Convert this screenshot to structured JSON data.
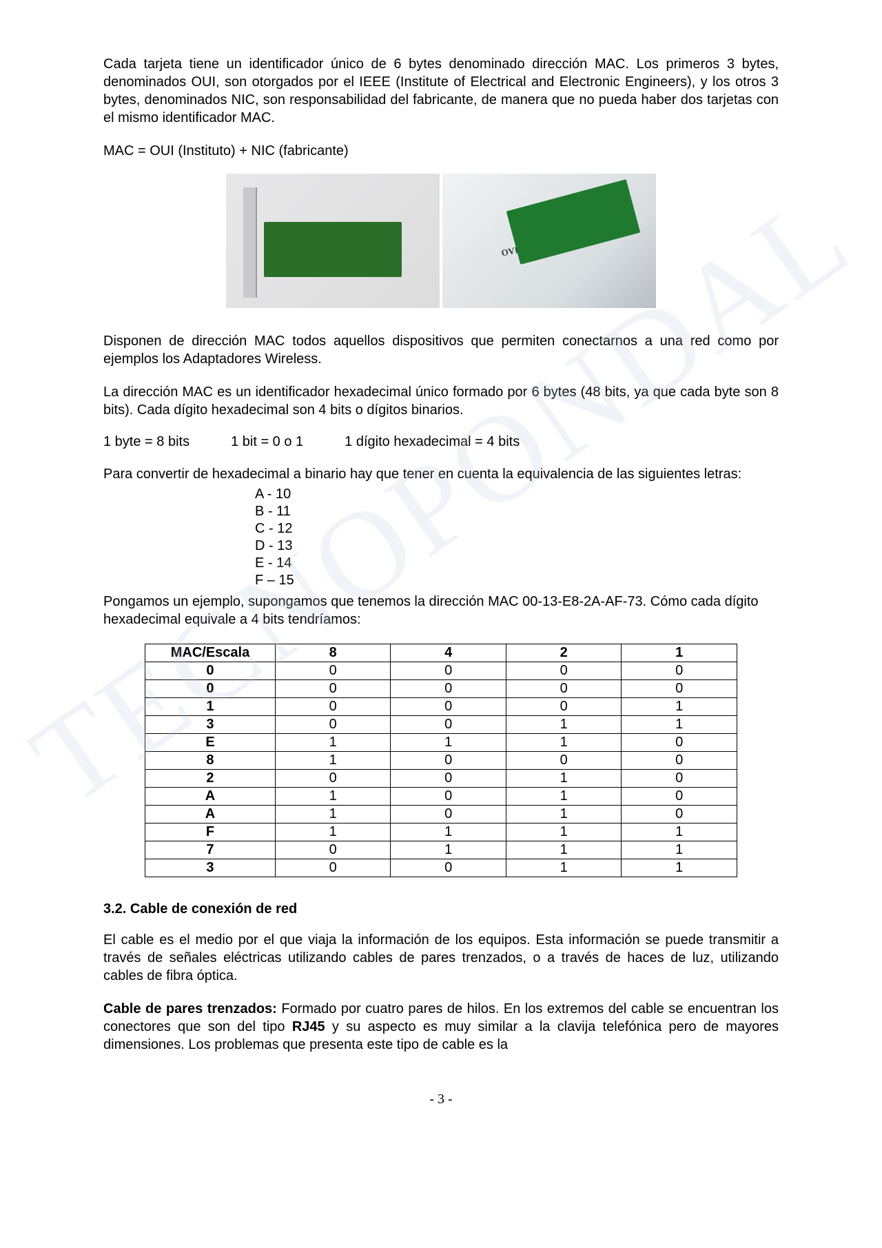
{
  "watermark_text": "TECNOPONDAL",
  "para1": "Cada tarjeta tiene un identificador único de 6 bytes denominado dirección MAC.  Los primeros 3 bytes, denominados OUI, son otorgados por el IEEE (Institute of Electrical and Electronic Engineers), y los otros 3 bytes, denominados NIC, son responsabilidad del fabricante, de manera que no pueda haber dos tarjetas con el mismo identificador MAC.",
  "formula_line": "MAC = OUI (Instituto) + NIC (fabricante)",
  "image_right_label": "OVISLINK®",
  "para2": "Disponen de dirección MAC todos aquellos dispositivos que permiten conectarnos a una red como por ejemplos los Adaptadores Wireless.",
  "para3": "La dirección MAC es un identificador hexadecimal único formado por 6 bytes (48 bits, ya que cada byte son 8 bits).  Cada dígito hexadecimal son 4 bits o dígitos binarios.",
  "bits_row": {
    "a": "1 byte = 8 bits",
    "b": "1 bit = 0 o 1",
    "c": "1 dígito hexadecimal = 4 bits"
  },
  "para4": "Para convertir de hexadecimal a binario hay que tener en cuenta la equivalencia de las siguientes letras:",
  "hex_equiv": [
    "A - 10",
    "B - 11",
    "C - 12",
    "D - 13",
    "E - 14",
    "F – 15"
  ],
  "para5": "Pongamos un ejemplo,  supongamos que tenemos la dirección MAC 00-13-E8-2A-AF-73. Cómo cada dígito hexadecimal equivale a 4 bits tendríamos:",
  "mac_table": {
    "headers": [
      "MAC/Escala",
      "8",
      "4",
      "2",
      "1"
    ],
    "rows": [
      [
        "0",
        "0",
        "0",
        "0",
        "0"
      ],
      [
        "0",
        "0",
        "0",
        "0",
        "0"
      ],
      [
        "1",
        "0",
        "0",
        "0",
        "1"
      ],
      [
        "3",
        "0",
        "0",
        "1",
        "1"
      ],
      [
        "E",
        "1",
        "1",
        "1",
        "0"
      ],
      [
        "8",
        "1",
        "0",
        "0",
        "0"
      ],
      [
        "2",
        "0",
        "0",
        "1",
        "0"
      ],
      [
        "A",
        "1",
        "0",
        "1",
        "0"
      ],
      [
        "A",
        "1",
        "0",
        "1",
        "0"
      ],
      [
        "F",
        "1",
        "1",
        "1",
        "1"
      ],
      [
        "7",
        "0",
        "1",
        "1",
        "1"
      ],
      [
        "3",
        "0",
        "0",
        "1",
        "1"
      ]
    ],
    "col_widths": [
      "22%",
      "19.5%",
      "19.5%",
      "19.5%",
      "19.5%"
    ]
  },
  "section_3_2": "3.2.  Cable de conexión de red",
  "para6": "El cable es el medio por el que viaja la información de los equipos.  Esta información se puede transmitir a través de señales eléctricas utilizando cables de pares trenzados, o a través de haces de luz, utilizando cables de fibra óptica.",
  "para7_prefix": "Cable de pares trenzados:",
  "para7_mid1": "  Formado por cuatro pares de hilos.  En los extremos del cable se encuentran los conectores que son del tipo ",
  "para7_bold2": "RJ45",
  "para7_rest": " y su aspecto es muy similar a la clavija telefónica pero de mayores dimensiones.  Los problemas que presenta este tipo de cable es la",
  "page_number": "- 3 -"
}
